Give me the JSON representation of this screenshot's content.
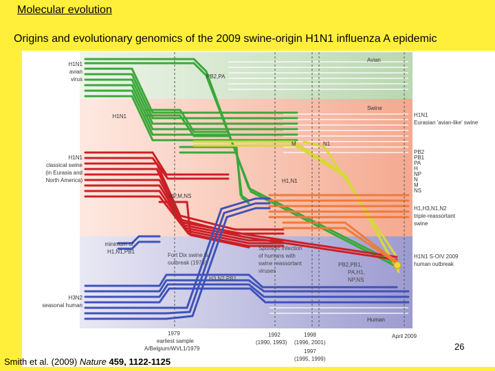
{
  "slide": {
    "header": "Molecular evolution",
    "title": "Origins and evolutionary genomics of the 2009 swine-origin H1N1 influenza A epidemic",
    "page_number": "26",
    "citation": {
      "authors": "Smith et al. (2009) ",
      "journal": "Nature",
      "details": " 459, 1122-1125"
    }
  },
  "figure": {
    "left_labels": {
      "avian": [
        "H1N1",
        "avian",
        "virus"
      ],
      "h1n1": "H1N1",
      "classical": [
        "H1N1",
        "classical swine",
        "(in Eurasia and",
        "North America)"
      ],
      "minimum": [
        "minimum of:",
        "H1,N1,PB1"
      ],
      "h3n2": [
        "H3N2",
        "seasonal human"
      ]
    },
    "band_labels": {
      "avian": "Avian",
      "swine": "Swine",
      "human": "Human"
    },
    "right_labels": {
      "eurasian": [
        "H1N1",
        "Eurasian 'avian-like' swine"
      ],
      "segments": [
        "PB2",
        "PB1",
        "PA",
        "H",
        "NP",
        "N",
        "M",
        "NS"
      ],
      "triple": [
        "H1,H3,N1,N2",
        "triple-reassortant",
        "swine"
      ],
      "outbreak": [
        "H1N1 S-OIV 2009",
        "human outbreak"
      ]
    },
    "inner_labels": {
      "pb2pa": "PB2,PA",
      "m": "M",
      "n1": "N1",
      "h1n1": "H1,N1",
      "npmns": "NP,M,NS",
      "fort_dix": [
        "Fort Dix swine flu",
        "outbreak (1976)"
      ],
      "sporadic": [
        "Sporadic infection",
        "of humans with",
        "swine reassortant",
        "viruses"
      ],
      "h3n2pb1": "H3,N2,PB1",
      "pb2pb1": [
        "PB2,PB1,",
        "PA,H1,",
        "NP,NS"
      ]
    },
    "timeline": {
      "t1979": [
        "1979",
        "earliest sample",
        "A/Belgium/WVL1/1979"
      ],
      "t1992": [
        "1992",
        "(1990, 1993)"
      ],
      "t1998": [
        "1998",
        "(1996, 2001)"
      ],
      "t1997": [
        "1997",
        "(1995, 1999)"
      ],
      "t2009": "April 2009"
    },
    "colors": {
      "avian_band": "#d9ead3",
      "swine_band": "#f8c9b8",
      "human_band": "#c7c6e2",
      "green": "#3aa83a",
      "red": "#cc1f26",
      "blue": "#3f52b8",
      "yellow": "#d8d83a",
      "orange": "#f07a3a"
    }
  }
}
